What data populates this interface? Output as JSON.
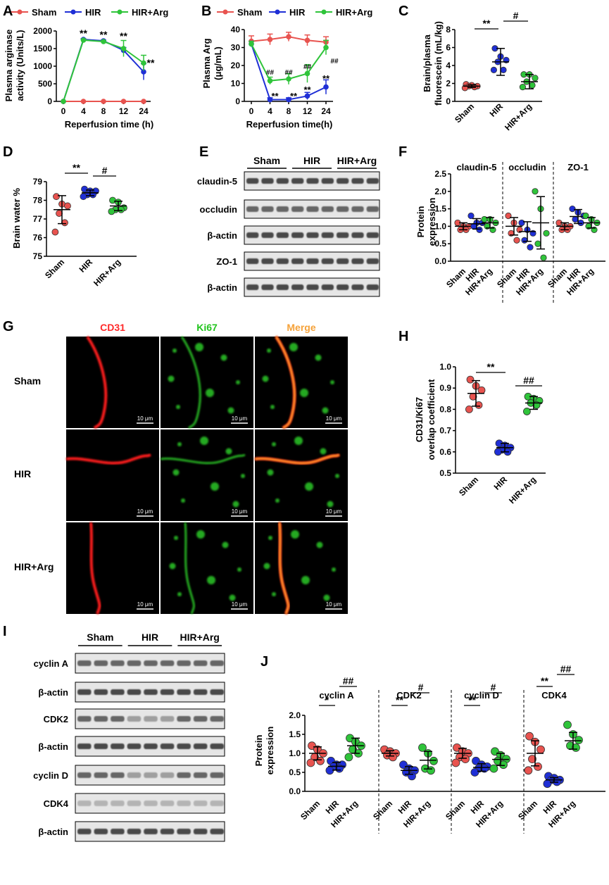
{
  "colors": {
    "sham": "#e8534f",
    "hir": "#1f2fd6",
    "arg": "#2fc43a",
    "black": "#000000",
    "red_label": "#ff2a2a",
    "green_label": "#22c41e",
    "orange_label": "#f5a23a"
  },
  "panel_letters": {
    "A": "A",
    "B": "B",
    "C": "C",
    "D": "D",
    "E": "E",
    "F": "F",
    "G": "G",
    "H": "H",
    "I": "I",
    "J": "J"
  },
  "chart_data": [
    {
      "id": "A",
      "type": "line",
      "ylabel_line1": "Plasma arginase",
      "ylabel_line2": "activity (Units/L)",
      "xlabel": "Reperfusion time (h)",
      "x": [
        0,
        4,
        8,
        12,
        24
      ],
      "xticks": [
        "0",
        "4",
        "8",
        "12",
        "24"
      ],
      "ylim": [
        0,
        2000
      ],
      "yticks": [
        0,
        500,
        1000,
        1500,
        2000
      ],
      "legend": [
        "Sham",
        "HIR",
        "HIR+Arg"
      ],
      "series": [
        {
          "name": "Sham",
          "values": [
            0,
            0,
            0,
            0,
            0
          ],
          "err": [
            0,
            0,
            0,
            0,
            0
          ]
        },
        {
          "name": "HIR",
          "values": [
            0,
            1760,
            1720,
            1450,
            840
          ],
          "err": [
            0,
            20,
            20,
            80,
            230
          ]
        },
        {
          "name": "HIR+Arg",
          "values": [
            0,
            1740,
            1700,
            1500,
            1090
          ],
          "err": [
            0,
            20,
            20,
            230,
            220
          ]
        }
      ],
      "annotations": [
        "**",
        "**",
        "**",
        "**"
      ]
    },
    {
      "id": "B",
      "type": "line",
      "ylabel_line1": "Plasma Arg",
      "ylabel_line2": "(μg/mL)",
      "xlabel": "Reperfusion time(h)",
      "x": [
        0,
        4,
        8,
        12,
        24
      ],
      "xticks": [
        "0",
        "4",
        "8",
        "12",
        "24"
      ],
      "ylim": [
        0,
        40
      ],
      "yticks": [
        0,
        10,
        20,
        30,
        40
      ],
      "legend": [
        "Sham",
        "HIR",
        "HIR+Arg"
      ],
      "series": [
        {
          "name": "Sham",
          "values": [
            33.5,
            34.5,
            36,
            34,
            33
          ],
          "err": [
            3,
            3,
            2.5,
            3,
            3
          ]
        },
        {
          "name": "HIR",
          "values": [
            32,
            1,
            1,
            3,
            8
          ],
          "err": [
            1.5,
            1,
            1,
            2,
            4
          ]
        },
        {
          "name": "HIR+Arg",
          "values": [
            32,
            11.5,
            12.5,
            15.5,
            30
          ],
          "err": [
            1.5,
            2,
            3,
            5,
            4
          ]
        }
      ],
      "annotations_hir": [
        "**",
        "**",
        "**",
        "**"
      ],
      "annotations_arg": [
        "##",
        "##",
        "##",
        "##"
      ]
    },
    {
      "id": "C",
      "type": "scatter",
      "ylabel_line1": "Brain/plasma",
      "ylabel_line2": "fluorescein (mL/kg)",
      "categories": [
        "Sham",
        "HIR",
        "HIR+Arg"
      ],
      "ylim": [
        0,
        8
      ],
      "yticks": [
        0,
        2,
        4,
        6,
        8
      ],
      "groups": [
        {
          "name": "Sham",
          "points": [
            1.7,
            1.6,
            1.8,
            1.5,
            1.9,
            1.7
          ],
          "mean": 1.7,
          "sd": 0.15
        },
        {
          "name": "HIR",
          "points": [
            5.9,
            4.4,
            3.5,
            3.5,
            4.6,
            5.0
          ],
          "mean": 4.4,
          "sd": 1.5
        },
        {
          "name": "HIR+Arg",
          "points": [
            3.0,
            2.6,
            1.8,
            1.6,
            2.2,
            3.0
          ],
          "mean": 2.2,
          "sd": 0.8
        }
      ],
      "brackets": [
        "**",
        "#"
      ]
    },
    {
      "id": "D",
      "type": "scatter",
      "ylabel_line1": "Brain water %",
      "categories": [
        "Sham",
        "HIR",
        "HIR+Arg"
      ],
      "ylim": [
        75,
        79
      ],
      "yticks": [
        75,
        76,
        77,
        78,
        79
      ],
      "groups": [
        {
          "name": "Sham",
          "points": [
            78.2,
            77.8,
            77.7,
            77.3,
            76.8,
            76.3
          ],
          "mean": 77.5,
          "sd": 0.75
        },
        {
          "name": "HIR",
          "points": [
            78.6,
            78.5,
            78.5,
            78.3,
            78.3,
            78.2
          ],
          "mean": 78.4,
          "sd": 0.15
        },
        {
          "name": "HIR+Arg",
          "points": [
            78.0,
            77.9,
            77.6,
            77.5,
            77.5,
            77.4
          ],
          "mean": 77.7,
          "sd": 0.25
        }
      ],
      "brackets": [
        "**",
        "#"
      ]
    },
    {
      "id": "F",
      "type": "scatter",
      "ylabel_line1": "Protein",
      "ylabel_line2": "expression",
      "categories": [
        "Sham",
        "HIR",
        "HIR+Arg"
      ],
      "ylim": [
        0,
        2.5
      ],
      "yticks": [
        "0.0",
        "0.5",
        "1.0",
        "1.5",
        "2.0",
        "2.5"
      ],
      "panels": [
        {
          "title": "claudin-5",
          "groups": [
            {
              "points": [
                1.1,
                1.0,
                0.9,
                1.0,
                0.9
              ],
              "mean": 1.0,
              "sd": 0.1
            },
            {
              "points": [
                1.3,
                1.1,
                1.0,
                0.9,
                1.1
              ],
              "mean": 1.07,
              "sd": 0.15
            },
            {
              "points": [
                1.2,
                1.1,
                1.0,
                0.9,
                1.2
              ],
              "mean": 1.1,
              "sd": 0.15
            }
          ]
        },
        {
          "title": "occludin",
          "groups": [
            {
              "points": [
                1.3,
                1.1,
                0.9,
                0.8,
                0.6
              ],
              "mean": 1.0,
              "sd": 0.25
            },
            {
              "points": [
                1.1,
                0.9,
                0.8,
                0.6,
                0.4
              ],
              "mean": 0.85,
              "sd": 0.28
            },
            {
              "points": [
                2.0,
                1.5,
                0.8,
                0.5,
                0.1
              ],
              "mean": 1.1,
              "sd": 0.75
            }
          ]
        },
        {
          "title": "ZO-1",
          "groups": [
            {
              "points": [
                1.1,
                1.0,
                0.9,
                0.9,
                1.0
              ],
              "mean": 1.0,
              "sd": 0.1
            },
            {
              "points": [
                1.5,
                1.3,
                1.2,
                1.1,
                1.4
              ],
              "mean": 1.28,
              "sd": 0.2
            },
            {
              "points": [
                1.3,
                1.2,
                1.0,
                0.9,
                1.1
              ],
              "mean": 1.1,
              "sd": 0.15
            }
          ]
        }
      ]
    },
    {
      "id": "H",
      "type": "scatter",
      "ylabel_line1": "CD31/Ki67",
      "ylabel_line2": "overlap coefficient",
      "categories": [
        "Sham",
        "HIR",
        "HIR+Arg"
      ],
      "ylim": [
        0.5,
        1.0
      ],
      "yticks": [
        "0.5",
        "0.6",
        "0.7",
        "0.8",
        "0.9",
        "1.0"
      ],
      "groups": [
        {
          "name": "Sham",
          "points": [
            0.94,
            0.91,
            0.89,
            0.86,
            0.82,
            0.8
          ],
          "mean": 0.875,
          "sd": 0.06
        },
        {
          "name": "HIR",
          "points": [
            0.64,
            0.63,
            0.62,
            0.61,
            0.6,
            0.6
          ],
          "mean": 0.62,
          "sd": 0.02
        },
        {
          "name": "HIR+Arg",
          "points": [
            0.86,
            0.85,
            0.84,
            0.83,
            0.82,
            0.79
          ],
          "mean": 0.83,
          "sd": 0.03
        }
      ],
      "brackets": [
        "**",
        "##"
      ]
    },
    {
      "id": "J",
      "type": "scatter",
      "ylabel_line1": "Protein",
      "ylabel_line2": "expression",
      "categories": [
        "Sham",
        "HIR",
        "HIR+Arg"
      ],
      "ylim": [
        0,
        2.0
      ],
      "yticks": [
        "0.0",
        "0.5",
        "1.0",
        "1.5",
        "2.0"
      ],
      "panels": [
        {
          "title": "cyclin A",
          "brackets": [
            "*",
            "##"
          ],
          "groups": [
            {
              "points": [
                1.2,
                1.1,
                1.0,
                0.9,
                0.8,
                0.75
              ],
              "mean": 1.0,
              "sd": 0.17
            },
            {
              "points": [
                0.8,
                0.7,
                0.65,
                0.6,
                0.55,
                0.7
              ],
              "mean": 0.66,
              "sd": 0.1
            },
            {
              "points": [
                1.4,
                1.3,
                1.2,
                1.1,
                1.0,
                0.9
              ],
              "mean": 1.2,
              "sd": 0.2
            }
          ]
        },
        {
          "title": "CDK2",
          "brackets": [
            "**",
            "#"
          ],
          "groups": [
            {
              "points": [
                1.1,
                1.05,
                1.0,
                0.95,
                0.9
              ],
              "mean": 1.0,
              "sd": 0.07
            },
            {
              "points": [
                0.7,
                0.6,
                0.55,
                0.5,
                0.4
              ],
              "mean": 0.55,
              "sd": 0.1
            },
            {
              "points": [
                1.15,
                1.0,
                0.8,
                0.6,
                0.55
              ],
              "mean": 0.82,
              "sd": 0.23
            }
          ]
        },
        {
          "title": "cyclin D",
          "brackets": [
            "**",
            "#"
          ],
          "groups": [
            {
              "points": [
                1.15,
                1.05,
                1.0,
                0.9,
                0.85,
                0.75
              ],
              "mean": 1.0,
              "sd": 0.13
            },
            {
              "points": [
                0.8,
                0.7,
                0.65,
                0.6,
                0.5,
                0.6
              ],
              "mean": 0.63,
              "sd": 0.1
            },
            {
              "points": [
                1.05,
                0.95,
                0.85,
                0.8,
                0.7,
                0.6
              ],
              "mean": 0.84,
              "sd": 0.16
            }
          ]
        },
        {
          "title": "CDK4",
          "brackets": [
            "**",
            "##"
          ],
          "groups": [
            {
              "points": [
                1.45,
                1.3,
                1.1,
                0.85,
                0.65,
                0.55
              ],
              "mean": 1.0,
              "sd": 0.33
            },
            {
              "points": [
                0.4,
                0.35,
                0.3,
                0.3,
                0.25,
                0.2
              ],
              "mean": 0.3,
              "sd": 0.06
            },
            {
              "points": [
                1.75,
                1.5,
                1.35,
                1.2,
                1.15
              ],
              "mean": 1.33,
              "sd": 0.22
            }
          ]
        }
      ]
    }
  ],
  "blot_E": {
    "groups": [
      "Sham",
      "HIR",
      "HIR+Arg"
    ],
    "rows": [
      "claudin-5",
      "occludin",
      "β-actin",
      "ZO-1",
      "β-actin"
    ]
  },
  "blot_I": {
    "groups": [
      "Sham",
      "HIR",
      "HIR+Arg"
    ],
    "rows": [
      "cyclin A",
      "β-actin",
      "CDK2",
      "β-actin",
      "cyclin D",
      "CDK4",
      "β-actin"
    ]
  },
  "micro_G": {
    "columns": [
      "CD31",
      "Ki67",
      "Merge"
    ],
    "rows": [
      "Sham",
      "HIR",
      "HIR+Arg"
    ],
    "scale_bar": "10 μm"
  }
}
